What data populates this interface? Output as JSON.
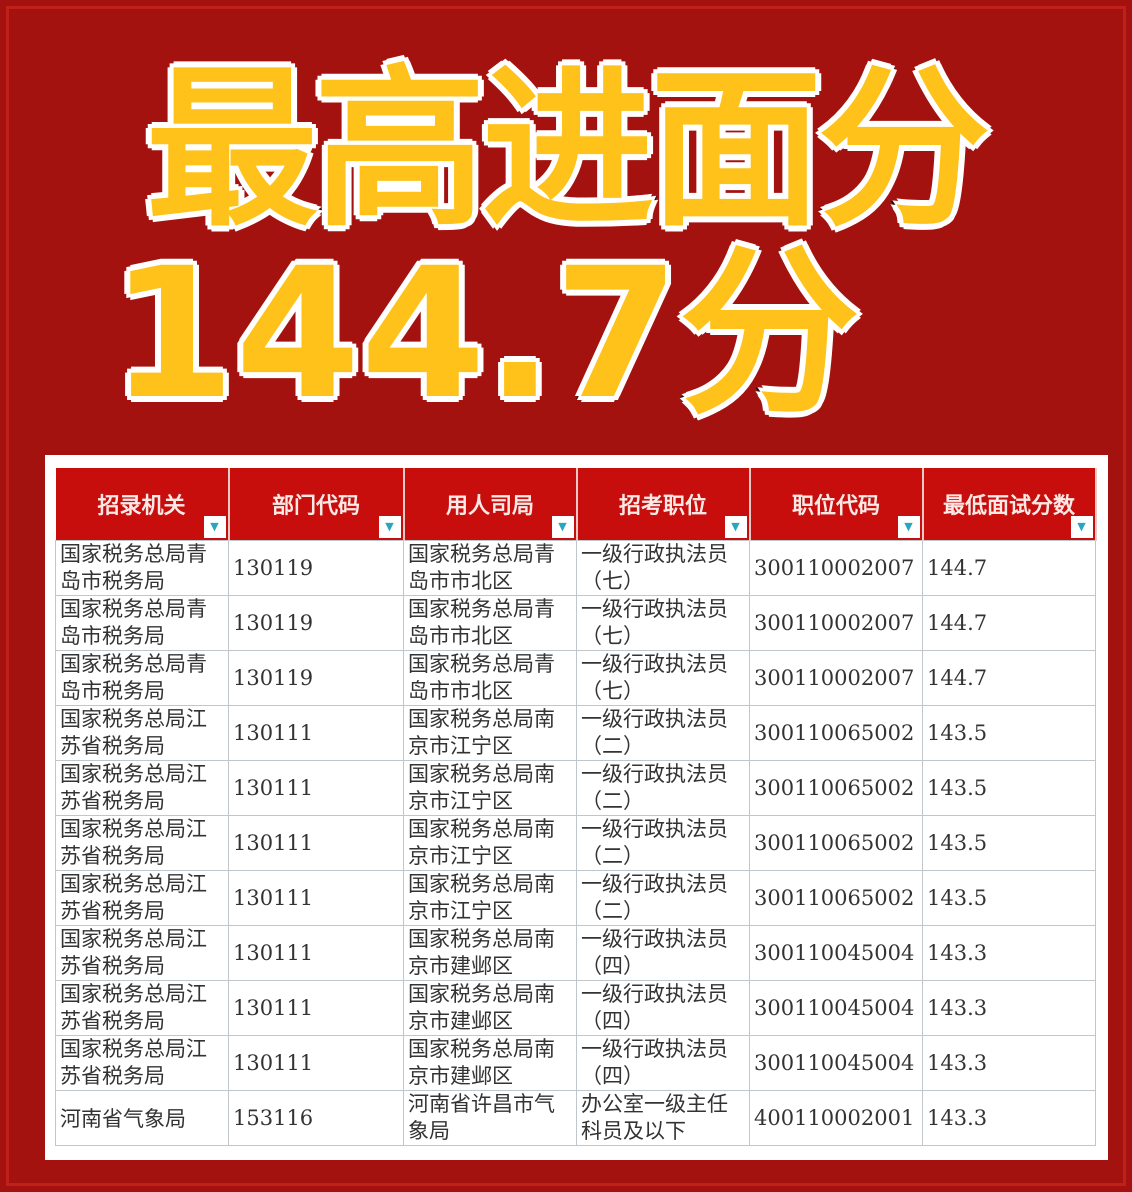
{
  "headline": {
    "line1": "最高进面分",
    "line2": "144.7分"
  },
  "colors": {
    "background": "#a3120f",
    "title": "#ffc21a",
    "header": "#c80d0d"
  },
  "table": {
    "columns": [
      "招录机关",
      "部门代码",
      "用人司局",
      "招考职位",
      "职位代码",
      "最低面试分数"
    ],
    "filter_icon": "filter-dropdown-icon",
    "rows": [
      [
        "国家税务总局青岛市税务局",
        "130119",
        "国家税务总局青岛市市北区",
        "一级行政执法员（七）",
        "300110002007",
        "144.7"
      ],
      [
        "国家税务总局青岛市税务局",
        "130119",
        "国家税务总局青岛市市北区",
        "一级行政执法员（七）",
        "300110002007",
        "144.7"
      ],
      [
        "国家税务总局青岛市税务局",
        "130119",
        "国家税务总局青岛市市北区",
        "一级行政执法员（七）",
        "300110002007",
        "144.7"
      ],
      [
        "国家税务总局江苏省税务局",
        "130111",
        "国家税务总局南京市江宁区",
        "一级行政执法员（二）",
        "300110065002",
        "143.5"
      ],
      [
        "国家税务总局江苏省税务局",
        "130111",
        "国家税务总局南京市江宁区",
        "一级行政执法员（二）",
        "300110065002",
        "143.5"
      ],
      [
        "国家税务总局江苏省税务局",
        "130111",
        "国家税务总局南京市江宁区",
        "一级行政执法员（二）",
        "300110065002",
        "143.5"
      ],
      [
        "国家税务总局江苏省税务局",
        "130111",
        "国家税务总局南京市江宁区",
        "一级行政执法员（二）",
        "300110065002",
        "143.5"
      ],
      [
        "国家税务总局江苏省税务局",
        "130111",
        "国家税务总局南京市建邺区",
        "一级行政执法员（四）",
        "300110045004",
        "143.3"
      ],
      [
        "国家税务总局江苏省税务局",
        "130111",
        "国家税务总局南京市建邺区",
        "一级行政执法员（四）",
        "300110045004",
        "143.3"
      ],
      [
        "国家税务总局江苏省税务局",
        "130111",
        "国家税务总局南京市建邺区",
        "一级行政执法员（四）",
        "300110045004",
        "143.3"
      ],
      [
        "河南省气象局",
        "153116",
        "河南省许昌市气象局",
        "办公室一级主任科员及以下",
        "400110002001",
        "143.3"
      ]
    ]
  }
}
